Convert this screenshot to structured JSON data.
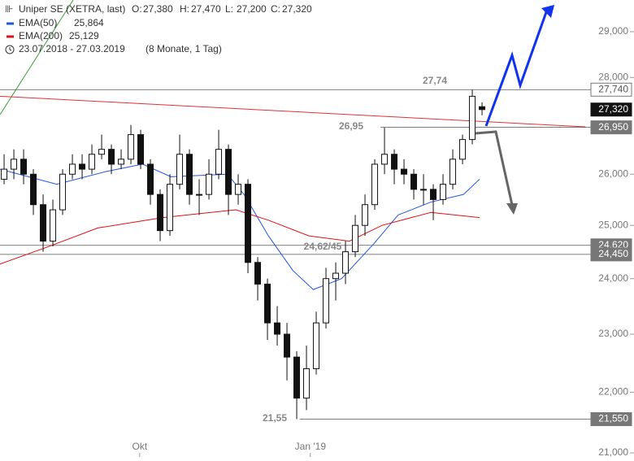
{
  "chart_data": {
    "type": "candlestick",
    "title": "Uniper SE (XETRA, last)",
    "ohlc_names": [
      "O:",
      "H:",
      "L:",
      "C:"
    ],
    "ohlc_values": [
      27.38,
      27.47,
      27.2,
      27.32
    ],
    "ohlc_labels": [
      "27,380",
      "27,470",
      "27,200",
      "27,320"
    ],
    "period": "23.07.2018 - 27.03.2019",
    "period_note": "(8 Monate, 1 Tag)",
    "log_scale": true,
    "xlim": [
      -0.42,
      64.58
    ],
    "ylim": [
      20.935,
      29.713
    ],
    "xticks": [
      {
        "value": 13.9,
        "label": "Okt"
      },
      {
        "value": 31.4,
        "label": "Jan '19"
      }
    ],
    "yticks": [
      {
        "value": 21,
        "label": "21,000"
      },
      {
        "value": 22,
        "label": "22,000"
      },
      {
        "value": 23,
        "label": "23,000"
      },
      {
        "value": 24,
        "label": "24,000"
      },
      {
        "value": 25,
        "label": "25,000"
      },
      {
        "value": 26,
        "label": "26,000"
      },
      {
        "value": 28,
        "label": "28,000"
      },
      {
        "value": 29,
        "label": "29,000"
      }
    ],
    "candles": {
      "open": [
        25.9,
        26.1,
        26.3,
        26.0,
        25.4,
        24.7,
        25.3,
        26.0,
        26.2,
        26.1,
        26.4,
        26.5,
        26.2,
        26.3,
        26.8,
        26.2,
        25.6,
        24.9,
        25.8,
        26.4,
        25.6,
        25.6,
        26.0,
        26.5,
        25.6,
        25.8,
        24.3,
        23.9,
        23.2,
        23.0,
        22.6,
        21.9,
        22.4,
        23.2,
        24.0,
        24.1,
        24.5,
        25.0,
        25.4,
        26.2,
        26.4,
        26.1,
        26.0,
        25.7,
        25.7,
        25.5,
        25.8,
        26.3,
        26.7,
        27.38
      ],
      "high": [
        26.4,
        26.5,
        26.5,
        26.1,
        25.6,
        25.5,
        26.1,
        26.4,
        26.4,
        26.6,
        26.8,
        26.6,
        26.5,
        27.0,
        26.9,
        26.3,
        25.7,
        26.0,
        26.8,
        26.5,
        25.9,
        26.3,
        26.9,
        26.6,
        26.0,
        25.9,
        24.4,
        24.0,
        23.5,
        23.2,
        22.7,
        22.8,
        23.4,
        24.2,
        24.3,
        24.7,
        25.2,
        25.6,
        26.3,
        26.95,
        26.5,
        26.3,
        26.1,
        26.0,
        25.8,
        26.0,
        26.5,
        26.8,
        27.74,
        27.47
      ],
      "low": [
        25.8,
        25.9,
        25.8,
        25.2,
        24.5,
        24.6,
        25.2,
        25.9,
        25.9,
        26.0,
        26.3,
        26.0,
        26.1,
        26.2,
        26.1,
        25.4,
        24.7,
        24.8,
        25.7,
        25.4,
        25.2,
        25.5,
        25.9,
        25.2,
        25.4,
        24.1,
        23.6,
        22.9,
        22.8,
        22.2,
        21.55,
        21.7,
        22.3,
        23.1,
        23.6,
        23.9,
        24.4,
        24.8,
        25.3,
        26.0,
        25.8,
        25.8,
        25.5,
        25.4,
        25.1,
        25.4,
        25.7,
        26.2,
        26.6,
        27.2
      ],
      "close": [
        26.1,
        26.3,
        26.0,
        25.4,
        24.7,
        25.3,
        26.0,
        26.2,
        26.1,
        26.4,
        26.5,
        26.2,
        26.3,
        26.8,
        26.2,
        25.6,
        24.9,
        25.8,
        26.4,
        25.6,
        25.6,
        26.0,
        26.5,
        25.6,
        25.8,
        24.3,
        23.9,
        23.2,
        23.0,
        22.6,
        21.9,
        22.4,
        23.2,
        24.0,
        24.1,
        24.5,
        25.0,
        25.4,
        26.2,
        26.4,
        26.1,
        26.0,
        25.7,
        25.7,
        25.5,
        25.8,
        26.3,
        26.7,
        27.6,
        27.32
      ]
    },
    "series": [
      {
        "name": "EMA(50)",
        "color": "#2255dd",
        "last_value": 25.864,
        "last_label": "25,864",
        "x": [
          -0.42,
          5.4,
          10.4,
          14.2,
          17.1,
          22.9,
          24.6,
          27.1,
          29.6,
          31.7,
          34.6,
          37.9,
          40.4,
          43.75,
          47.1,
          48.75
        ],
        "values": [
          26.1,
          25.8,
          26.05,
          26.2,
          25.95,
          26.0,
          25.6,
          24.8,
          24.15,
          23.8,
          24.0,
          24.65,
          25.2,
          25.45,
          25.6,
          25.9
        ]
      },
      {
        "name": "EMA(200)",
        "color": "#dd1111",
        "last_value": 25.129,
        "last_label": "25,129",
        "x": [
          -0.42,
          4.6,
          9.6,
          16.25,
          23.75,
          27.1,
          31.25,
          35.4,
          38.75,
          43.75,
          48.75
        ],
        "values": [
          24.27,
          24.6,
          24.95,
          25.15,
          25.3,
          25.1,
          24.8,
          24.7,
          25.0,
          25.25,
          25.15
        ]
      }
    ],
    "trendline": {
      "color": "#dd3333",
      "x": [
        -0.42,
        59.6
      ],
      "values": [
        27.6,
        26.96
      ]
    },
    "levels": [
      {
        "value": 27.74,
        "label": "27,740",
        "x_start": -0.42,
        "annotation": "27,74"
      },
      {
        "value": 27.32,
        "label": "27,320"
      },
      {
        "value": 26.95,
        "label": "26,950",
        "x_start": 38.6,
        "annotation": "26,95"
      },
      {
        "value": 24.62,
        "label": "24,620",
        "x_start": -0.42,
        "annotation": "24,62/45"
      },
      {
        "value": 24.45,
        "label": "24,450",
        "x_start": -0.42
      },
      {
        "value": 21.55,
        "label": "21,550",
        "x_start": 30.3,
        "annotation": "21,55"
      }
    ]
  }
}
